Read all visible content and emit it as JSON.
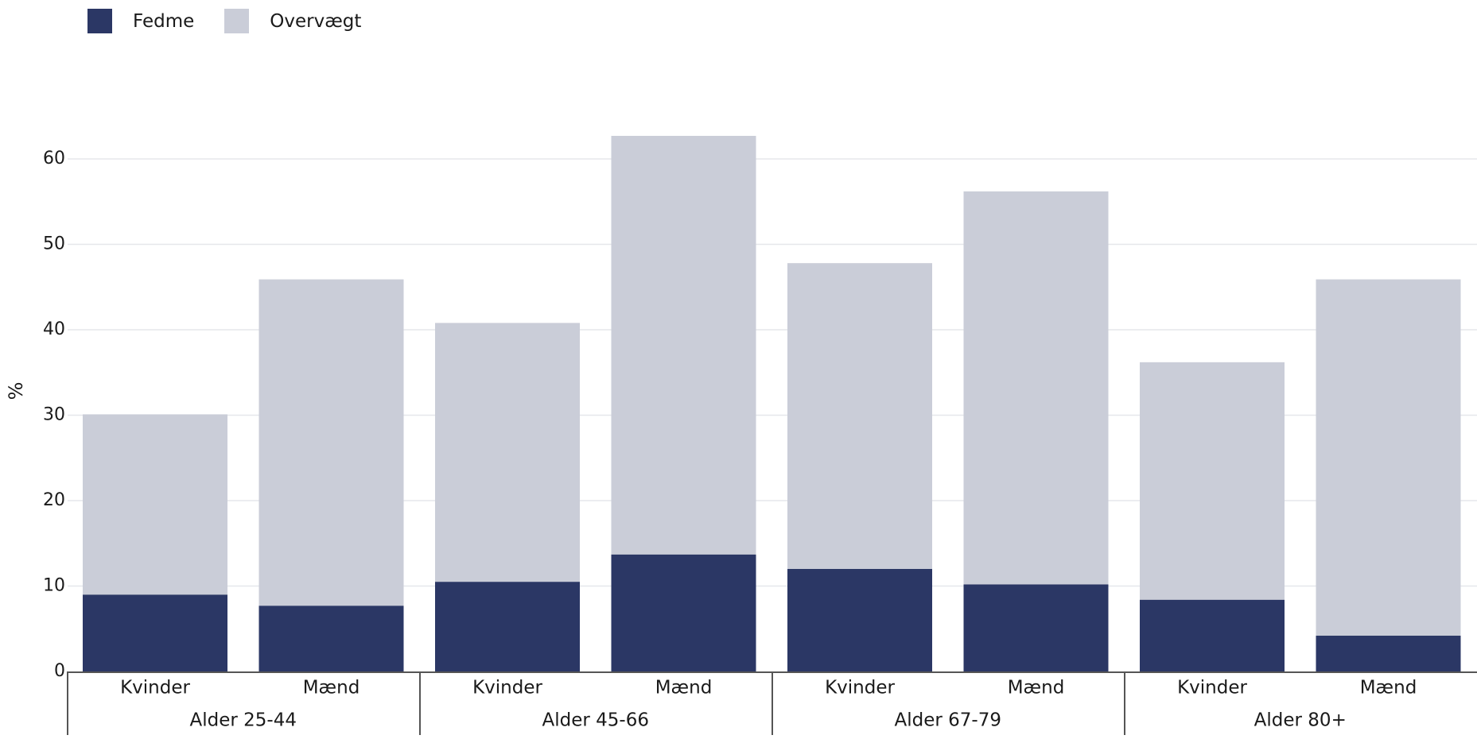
{
  "chart_data": {
    "type": "bar",
    "stacked": true,
    "ylabel": "%",
    "ylim": [
      0,
      63
    ],
    "yticks": [
      0,
      10,
      20,
      30,
      40,
      50,
      60
    ],
    "grid": true,
    "legend_position": "top-left",
    "groups": [
      {
        "label": "Alder 25-44",
        "categories": [
          "Kvinder",
          "Mænd"
        ]
      },
      {
        "label": "Alder 45-66",
        "categories": [
          "Kvinder",
          "Mænd"
        ]
      },
      {
        "label": "Alder 67-79",
        "categories": [
          "Kvinder",
          "Mænd"
        ]
      },
      {
        "label": "Alder 80+",
        "categories": [
          "Kvinder",
          "Mænd"
        ]
      }
    ],
    "series": [
      {
        "name": "Fedme",
        "color": "#2b3765",
        "values": [
          9.0,
          7.7,
          10.5,
          13.7,
          12.0,
          10.2,
          8.4,
          4.2
        ]
      },
      {
        "name": "Overvægt",
        "color": "#cacdd8",
        "values": [
          21.1,
          38.2,
          30.3,
          49.0,
          35.8,
          46.0,
          27.8,
          41.7
        ]
      }
    ]
  }
}
